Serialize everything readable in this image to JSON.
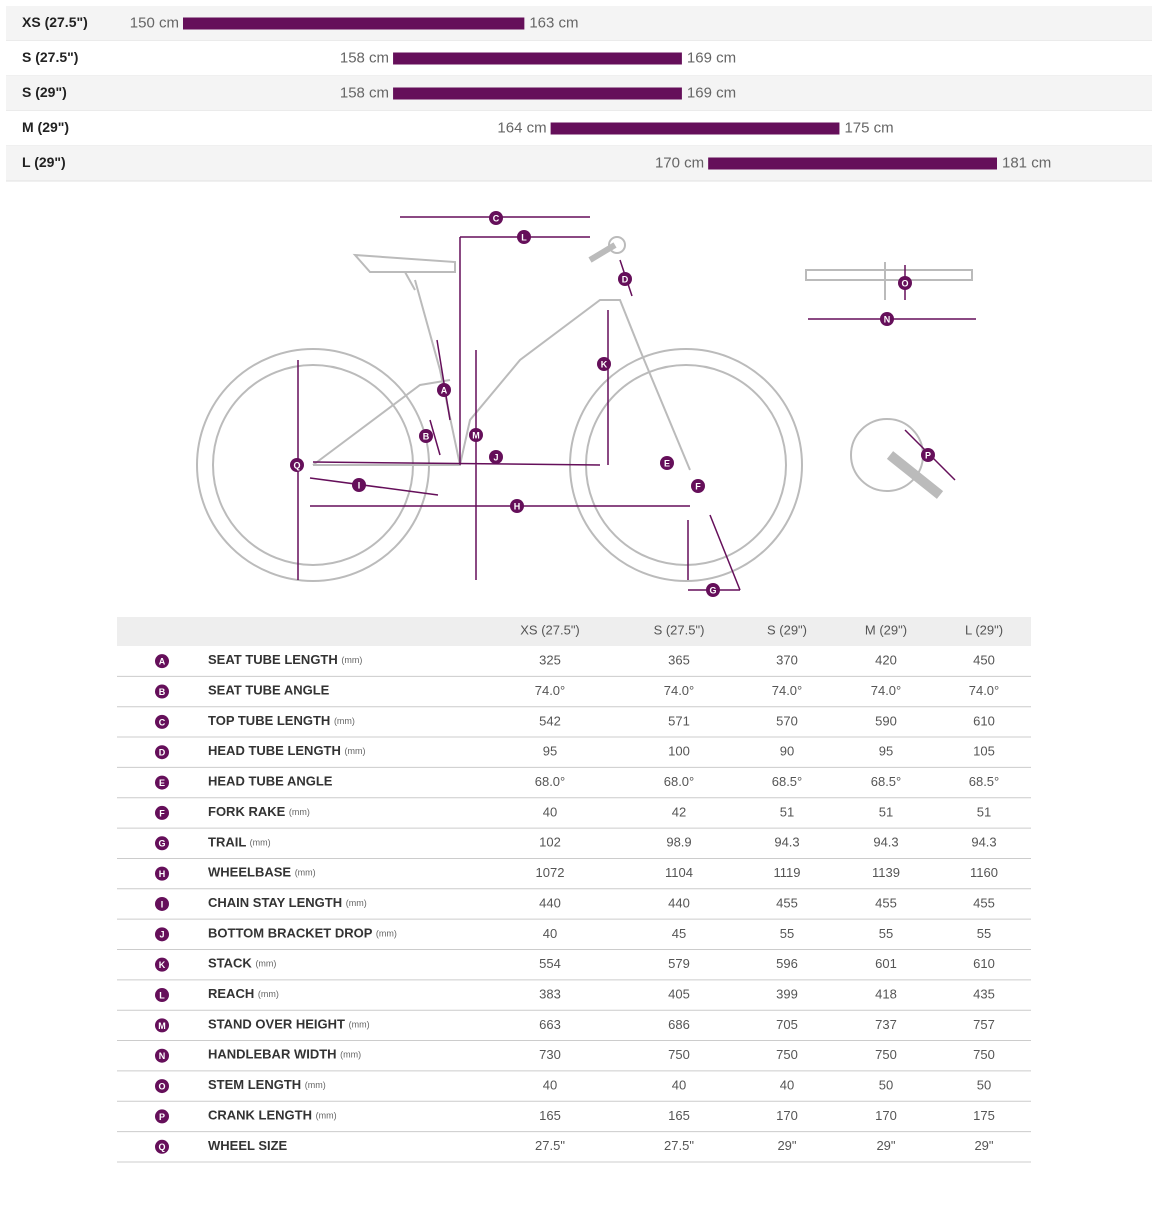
{
  "sizes": [
    {
      "name": "XS (27.5\")",
      "min": 150,
      "max": 163,
      "min_label": "150 cm",
      "max_label": "163 cm"
    },
    {
      "name": "S (27.5\")",
      "min": 158,
      "max": 169,
      "min_label": "158 cm",
      "max_label": "169 cm"
    },
    {
      "name": "S (29\")",
      "min": 158,
      "max": 169,
      "min_label": "158 cm",
      "max_label": "169 cm"
    },
    {
      "name": "M (29\")",
      "min": 164,
      "max": 175,
      "min_label": "164 cm",
      "max_label": "175 cm"
    },
    {
      "name": "L (29\")",
      "min": 170,
      "max": 181,
      "min_label": "170 cm",
      "max_label": "181 cm"
    }
  ],
  "geometry": {
    "columns": [
      "XS (27.5\")",
      "S (27.5\")",
      "S (29\")",
      "M (29\")",
      "L (29\")"
    ],
    "rows": [
      {
        "letter": "A",
        "name": "SEAT TUBE LENGTH",
        "unit": "(mm)",
        "values": [
          "325",
          "365",
          "370",
          "420",
          "450"
        ]
      },
      {
        "letter": "B",
        "name": "SEAT TUBE ANGLE",
        "values": [
          "74.0°",
          "74.0°",
          "74.0°",
          "74.0°",
          "74.0°"
        ]
      },
      {
        "letter": "C",
        "name": "TOP TUBE LENGTH",
        "unit": "(mm)",
        "values": [
          "542",
          "571",
          "570",
          "590",
          "610"
        ]
      },
      {
        "letter": "D",
        "name": "HEAD TUBE LENGTH",
        "unit": "(mm)",
        "values": [
          "95",
          "100",
          "90",
          "95",
          "105"
        ]
      },
      {
        "letter": "E",
        "name": "HEAD TUBE ANGLE",
        "values": [
          "68.0°",
          "68.0°",
          "68.5°",
          "68.5°",
          "68.5°"
        ]
      },
      {
        "letter": "F",
        "name": "FORK RAKE",
        "unit": "(mm)",
        "values": [
          "40",
          "42",
          "51",
          "51",
          "51"
        ]
      },
      {
        "letter": "G",
        "name": "TRAIL",
        "unit": "(mm)",
        "values": [
          "102",
          "98.9",
          "94.3",
          "94.3",
          "94.3"
        ]
      },
      {
        "letter": "H",
        "name": "WHEELBASE",
        "unit": "(mm)",
        "values": [
          "1072",
          "1104",
          "1119",
          "1139",
          "1160"
        ]
      },
      {
        "letter": "I",
        "name": "CHAIN STAY LENGTH",
        "unit": "(mm)",
        "values": [
          "440",
          "440",
          "455",
          "455",
          "455"
        ]
      },
      {
        "letter": "J",
        "name": "BOTTOM BRACKET DROP",
        "unit": "(mm)",
        "values": [
          "40",
          "45",
          "55",
          "55",
          "55"
        ]
      },
      {
        "letter": "K",
        "name": "STACK",
        "unit": "(mm)",
        "values": [
          "554",
          "579",
          "596",
          "601",
          "610"
        ]
      },
      {
        "letter": "L",
        "name": "REACH",
        "unit": "(mm)",
        "values": [
          "383",
          "405",
          "399",
          "418",
          "435"
        ]
      },
      {
        "letter": "M",
        "name": "STAND OVER HEIGHT",
        "unit": "(mm)",
        "values": [
          "663",
          "686",
          "705",
          "737",
          "757"
        ]
      },
      {
        "letter": "N",
        "name": "HANDLEBAR WIDTH",
        "unit": "(mm)",
        "values": [
          "730",
          "750",
          "750",
          "750",
          "750"
        ]
      },
      {
        "letter": "O",
        "name": "STEM LENGTH",
        "unit": "(mm)",
        "values": [
          "40",
          "40",
          "40",
          "50",
          "50"
        ]
      },
      {
        "letter": "P",
        "name": "CRANK LENGTH",
        "unit": "(mm)",
        "values": [
          "165",
          "165",
          "170",
          "170",
          "175"
        ]
      },
      {
        "letter": "Q",
        "name": "WHEEL SIZE",
        "values": [
          "27.5\"",
          "27.5\"",
          "29\"",
          "29\"",
          "29\""
        ]
      }
    ]
  }
}
